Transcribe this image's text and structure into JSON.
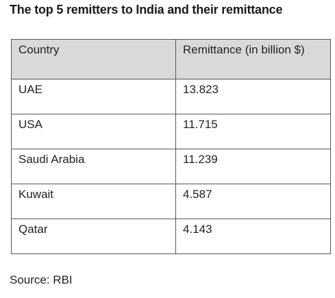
{
  "page": {
    "title": "The top 5 remitters to India and their remittance",
    "source": "Source: RBI"
  },
  "colors": {
    "header_background": "#d9d9d9",
    "border": "#555555",
    "text": "#222222"
  },
  "chart_data": {
    "type": "table",
    "title": "The top 5 remitters to India and their remittance",
    "columns": [
      "Country",
      "Remittance (in billion $)"
    ],
    "rows": [
      [
        "UAE",
        "13.823"
      ],
      [
        "USA",
        "11.715"
      ],
      [
        "Saudi Arabia",
        "11.239"
      ],
      [
        "Kuwait",
        "4.587"
      ],
      [
        "Qatar",
        "4.143"
      ]
    ],
    "source": "Source: RBI"
  }
}
